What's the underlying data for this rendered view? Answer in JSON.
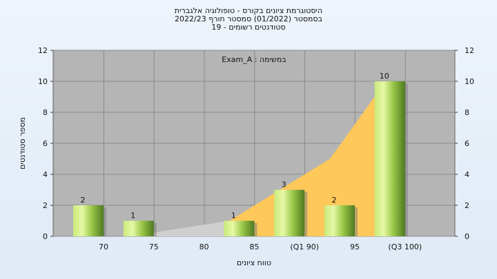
{
  "chart_data": {
    "type": "bar",
    "title_lines": [
      "היסטוגרמת ציונים בקורס - טופולוגיה אלגברית",
      "בסמסטר  (01/2022)  סמסטר חורף 2022/23",
      "סטודנטים רשומים - 19"
    ],
    "legend_text": "Exam_A : במשימה",
    "xlabel": "טווח ציונים",
    "ylabel": "מספר סטודנטים",
    "categories": [
      "70",
      "75",
      "80",
      "85",
      "(Q1 90)",
      "95",
      "(Q3 100)"
    ],
    "values": [
      2,
      1,
      0,
      1,
      3,
      2,
      10
    ],
    "value_labels": [
      "2",
      "1",
      "",
      "1",
      "3",
      "2",
      "10"
    ],
    "ylim": [
      0,
      12
    ],
    "yticks": [
      "0",
      "2",
      "4",
      "6",
      "8",
      "10",
      "12"
    ],
    "area_series": {
      "description": "cumulative overlay",
      "points": [
        {
          "x": "85",
          "y": 1
        },
        {
          "x": "(Q1 90)",
          "y": 3
        },
        {
          "x": "95",
          "y": 5
        },
        {
          "x": "(Q3 100)",
          "y": 9.5
        }
      ]
    },
    "colors": {
      "bar_light": "#d6f08a",
      "bar_mid": "#9ac646",
      "bar_dark": "#4f7a22",
      "plot_bg": "#b5b5b5",
      "area_fill": "#ffc85a",
      "area_grey": "#cccccc",
      "page_bg": "#e8f0f8"
    }
  }
}
